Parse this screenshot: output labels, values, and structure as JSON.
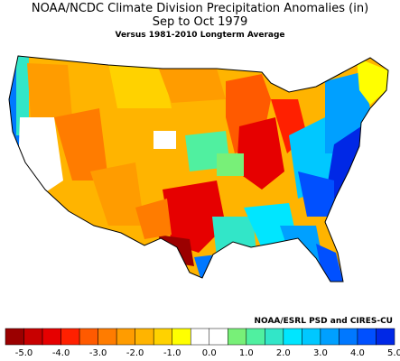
{
  "title": "NOAA/NCDC Climate Division Precipitation Anomalies (in)",
  "subtitle": "Sep to Oct 1979",
  "subtitle2": "Versus 1981-2010 Longterm Average",
  "credit": "NOAA/ESRL PSD and CIRES-CU",
  "legend": {
    "colors": [
      "#9b0000",
      "#c80000",
      "#e60000",
      "#ff2000",
      "#ff5a00",
      "#ff7c00",
      "#ff9c00",
      "#ffb400",
      "#ffd200",
      "#ffff00",
      "#ffffff",
      "#ffffff",
      "#78f078",
      "#50f0a0",
      "#32e6c8",
      "#00e6ff",
      "#00c8ff",
      "#00a0ff",
      "#0078ff",
      "#0050ff",
      "#0028e6"
    ],
    "ticks": [
      "-5.0",
      "-4.0",
      "-3.0",
      "-2.0",
      "-1.0",
      "0.0",
      "1.0",
      "2.0",
      "3.0",
      "4.0",
      "5.0"
    ]
  }
}
